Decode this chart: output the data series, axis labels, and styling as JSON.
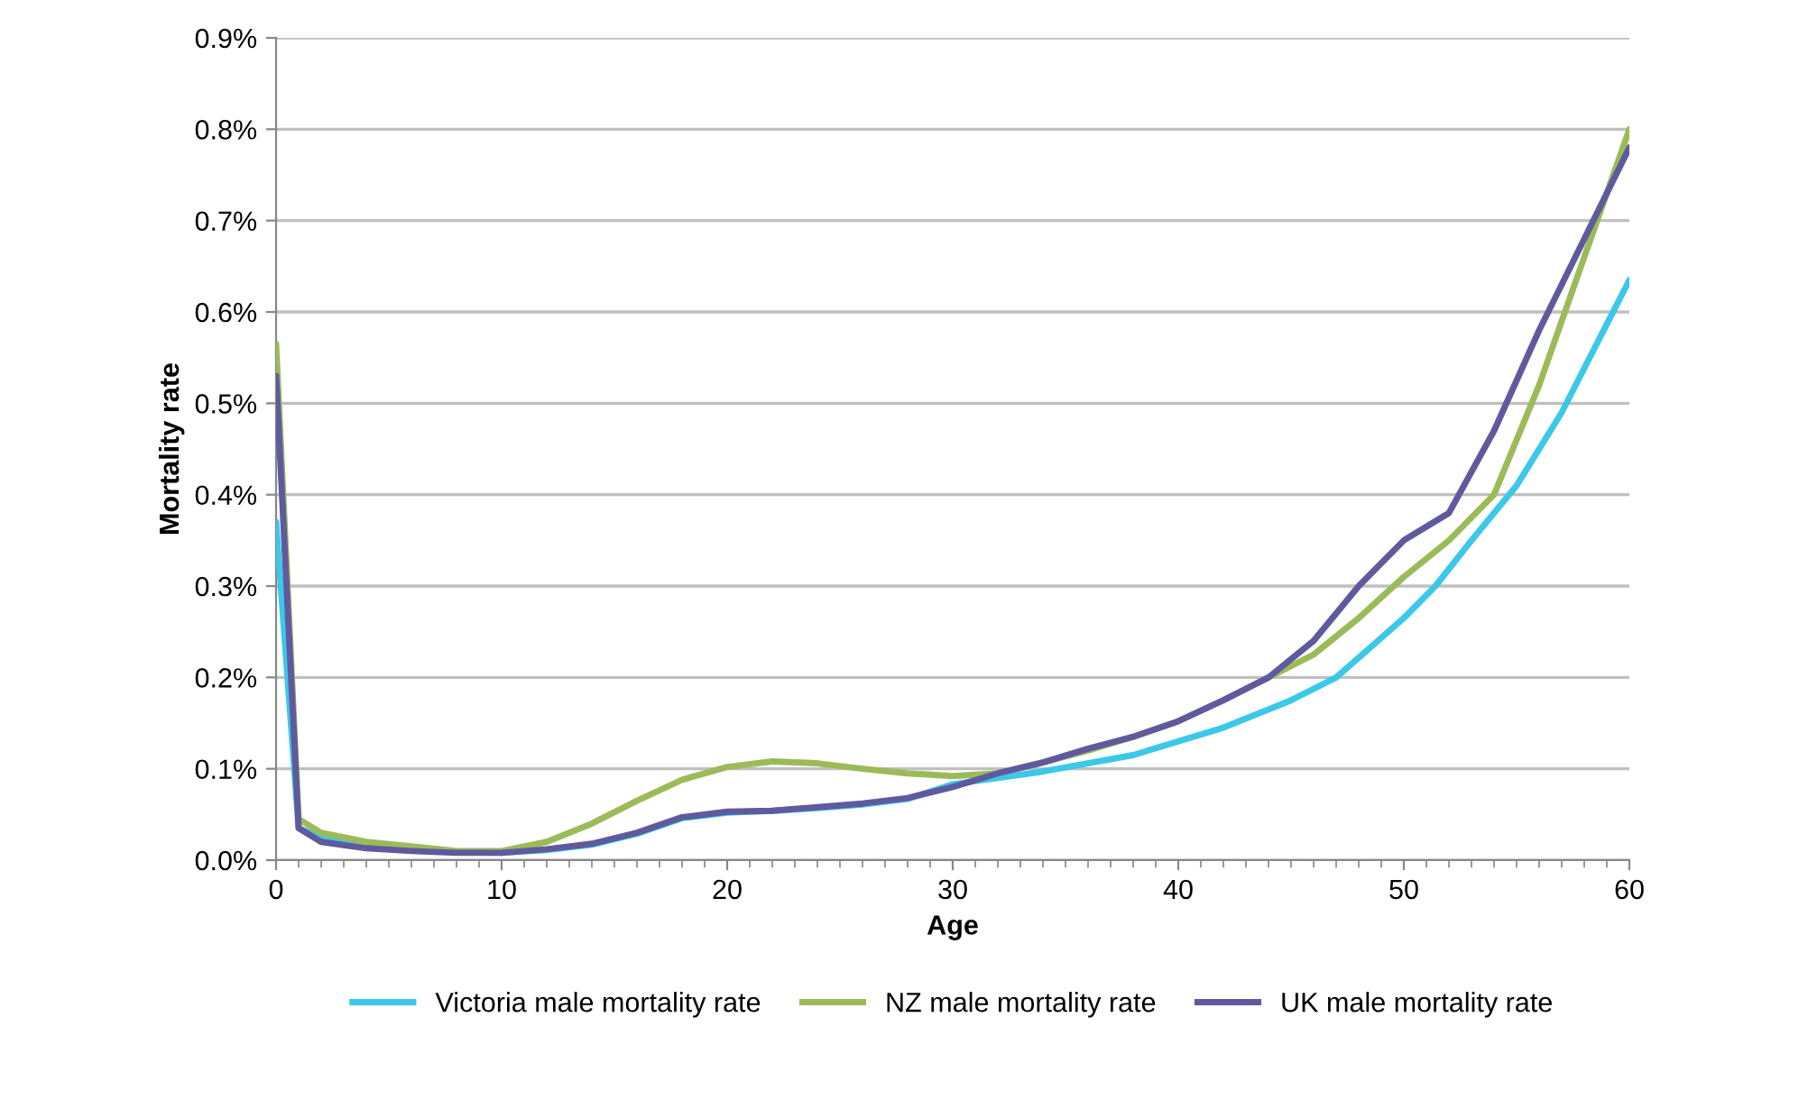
{
  "chart_data": {
    "type": "line",
    "xlabel": "Age",
    "ylabel": "Mortality rate",
    "xlim": [
      0,
      60
    ],
    "xticks": [
      0,
      10,
      20,
      30,
      40,
      50,
      60
    ],
    "ylim": [
      0,
      0.9
    ],
    "yticks": [
      {
        "value": 0,
        "label": "0.0%"
      },
      {
        "value": 0.1,
        "label": "0.1%"
      },
      {
        "value": 0.2,
        "label": "0.2%"
      },
      {
        "value": 0.3,
        "label": "0.3%"
      },
      {
        "value": 0.4,
        "label": "0.4%"
      },
      {
        "value": 0.5,
        "label": "0.5%"
      },
      {
        "value": 0.6,
        "label": "0.6%"
      },
      {
        "value": 0.7,
        "label": "0.7%"
      },
      {
        "value": 0.8,
        "label": "0.8%"
      },
      {
        "value": 0.9,
        "label": "0.9%"
      }
    ],
    "grid": "y",
    "legend": "bottom",
    "marker": "none",
    "line_style": "solid",
    "series": [
      {
        "name": "Victoria male mortality rate",
        "color": "#3cc8e8",
        "x": [
          0,
          1,
          2,
          4,
          6,
          8,
          10,
          12,
          14,
          16,
          18,
          20,
          22,
          24,
          26,
          28,
          30,
          34,
          38,
          42,
          45,
          47,
          50,
          51.4,
          53,
          55,
          57,
          60
        ],
        "values": [
          0.37,
          0.035,
          0.025,
          0.017,
          0.012,
          0.009,
          0.008,
          0.011,
          0.017,
          0.029,
          0.046,
          0.052,
          0.054,
          0.057,
          0.061,
          0.067,
          0.083,
          0.097,
          0.115,
          0.145,
          0.175,
          0.2,
          0.265,
          0.3,
          0.35,
          0.41,
          0.49,
          0.635
        ]
      },
      {
        "name": "NZ male mortality rate",
        "color": "#9bbb59",
        "x": [
          0,
          1,
          2,
          4,
          6,
          8,
          10,
          12,
          14,
          16,
          18,
          20,
          22,
          24,
          26,
          28,
          30,
          32,
          34,
          36,
          38,
          40,
          42,
          44,
          46,
          48,
          50,
          52,
          54,
          56,
          58,
          60
        ],
        "values": [
          0.565,
          0.045,
          0.03,
          0.02,
          0.015,
          0.01,
          0.01,
          0.02,
          0.04,
          0.065,
          0.088,
          0.102,
          0.108,
          0.106,
          0.1,
          0.095,
          0.092,
          0.095,
          0.107,
          0.12,
          0.135,
          0.152,
          0.175,
          0.2,
          0.225,
          0.265,
          0.31,
          0.35,
          0.4,
          0.52,
          0.66,
          0.8
        ]
      },
      {
        "name": "UK male mortality rate",
        "color": "#5f5a9e",
        "x": [
          0,
          1,
          2,
          4,
          6,
          8,
          10,
          12,
          14,
          16,
          18,
          20,
          22,
          24,
          26,
          28,
          30,
          32,
          34,
          36,
          38,
          40,
          42,
          44,
          46,
          48,
          50,
          52,
          54,
          56,
          58,
          60
        ],
        "values": [
          0.53,
          0.035,
          0.02,
          0.013,
          0.01,
          0.008,
          0.008,
          0.012,
          0.018,
          0.03,
          0.047,
          0.053,
          0.054,
          0.058,
          0.062,
          0.068,
          0.08,
          0.095,
          0.107,
          0.122,
          0.135,
          0.152,
          0.175,
          0.2,
          0.24,
          0.3,
          0.35,
          0.38,
          0.47,
          0.58,
          0.68,
          0.78
        ]
      }
    ]
  }
}
